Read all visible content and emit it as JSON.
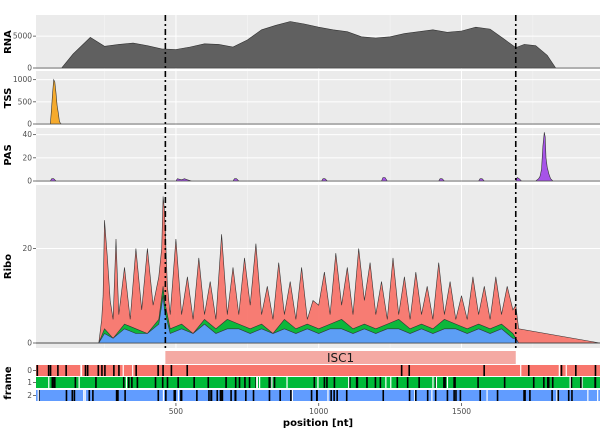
{
  "chart_data": {
    "type": "area",
    "xlabel": "position [nt]",
    "x_range": [
      10,
      1985
    ],
    "x_ticks": [
      500,
      1000,
      1500
    ],
    "orf_markers": [
      463,
      1690
    ],
    "gene": {
      "name": "ISC1",
      "start": 463,
      "end": 1690,
      "color": "#f4a9a3"
    },
    "panels": [
      {
        "id": "rna",
        "ylabel": "RNA",
        "y_ticks": [
          0,
          5000
        ],
        "ylim": [
          0,
          8000
        ],
        "series": [
          {
            "name": "rna",
            "color": "#606060",
            "x": [
              10,
              100,
              140,
              200,
              250,
              300,
              350,
              400,
              450,
              500,
              550,
              600,
              650,
              700,
              750,
              800,
              850,
              900,
              950,
              1000,
              1050,
              1100,
              1150,
              1200,
              1250,
              1300,
              1350,
              1400,
              1450,
              1500,
              1550,
              1600,
              1650,
              1690,
              1720,
              1760,
              1800,
              1830,
              1985
            ],
            "y": [
              0,
              0,
              2200,
              4800,
              3400,
              3700,
              3900,
              3500,
              3000,
              2900,
              3300,
              3800,
              3700,
              3300,
              4400,
              6000,
              6700,
              7300,
              6900,
              6400,
              6000,
              5700,
              4900,
              4700,
              4900,
              5400,
              5700,
              6000,
              5600,
              5800,
              6400,
              6100,
              4500,
              3200,
              3700,
              3500,
              2000,
              0,
              0
            ]
          }
        ]
      },
      {
        "id": "tss",
        "ylabel": "TSS",
        "y_ticks": [
          0,
          500,
          1000
        ],
        "ylim": [
          0,
          1150
        ],
        "series": [
          {
            "name": "tss",
            "color": "#f5a623",
            "x": [
              10,
              60,
              64,
              68,
              72,
              76,
              80,
              84,
              88,
              92,
              96,
              100,
              1985
            ],
            "y": [
              0,
              0,
              300,
              700,
              1000,
              950,
              700,
              420,
              250,
              60,
              10,
              0,
              0
            ]
          }
        ]
      },
      {
        "id": "pas",
        "ylabel": "PAS",
        "y_ticks": [
          0,
          20,
          40
        ],
        "ylim": [
          0,
          44
        ],
        "series": [
          {
            "name": "pas",
            "color": "#a24be8",
            "x": [
              10,
              60,
              65,
              72,
              80,
              500,
              505,
              520,
              530,
              540,
              555,
              700,
              705,
              712,
              720,
              1010,
              1015,
              1022,
              1030,
              1220,
              1225,
              1232,
              1240,
              1420,
              1425,
              1432,
              1440,
              1560,
              1565,
              1572,
              1580,
              1690,
              1695,
              1702,
              1710,
              1760,
              1770,
              1775,
              1780,
              1785,
              1790,
              1793,
              1796,
              1800,
              1806,
              1812,
              1820,
              1985
            ],
            "y": [
              0,
              0,
              2,
              2,
              0,
              0,
              2,
              1,
              2,
              1,
              0,
              0,
              2,
              2,
              0,
              0,
              2,
              2,
              0,
              0,
              3,
              3,
              0,
              0,
              2,
              2,
              0,
              0,
              2,
              2,
              0,
              0,
              3,
              2,
              0,
              0,
              2,
              4,
              10,
              30,
              42,
              38,
              20,
              12,
              6,
              2,
              0,
              0
            ]
          }
        ]
      },
      {
        "id": "ribo",
        "ylabel": "Ribo",
        "y_ticks": [
          0,
          20
        ],
        "ylim": [
          0,
          33
        ],
        "series": [
          {
            "name": "frame 0",
            "color": "#f8766d",
            "x": [
              10,
              230,
              240,
              245,
              250,
              260,
              270,
              280,
              290,
              300,
              320,
              340,
              360,
              380,
              400,
              420,
              440,
              450,
              455,
              460,
              470,
              480,
              500,
              520,
              540,
              560,
              580,
              600,
              620,
              640,
              660,
              680,
              700,
              720,
              740,
              760,
              780,
              800,
              820,
              840,
              860,
              880,
              900,
              920,
              940,
              960,
              980,
              1000,
              1020,
              1040,
              1060,
              1080,
              1100,
              1120,
              1140,
              1160,
              1180,
              1200,
              1220,
              1240,
              1260,
              1280,
              1300,
              1320,
              1340,
              1360,
              1380,
              1400,
              1420,
              1440,
              1460,
              1480,
              1500,
              1520,
              1540,
              1560,
              1580,
              1600,
              1620,
              1640,
              1660,
              1680,
              1690,
              1700,
              1985
            ],
            "y": [
              0,
              0,
              5,
              10,
              26,
              18,
              9,
              5,
              22,
              6,
              16,
              5,
              20,
              7,
              20,
              8,
              14,
              20,
              31,
              28,
              12,
              6,
              22,
              6,
              14,
              5,
              18,
              6,
              13,
              5,
              23,
              6,
              16,
              6,
              18,
              8,
              21,
              6,
              12,
              5,
              17,
              6,
              13,
              5,
              16,
              5,
              9,
              8,
              15,
              6,
              19,
              8,
              16,
              6,
              20,
              9,
              17,
              6,
              13,
              5,
              18,
              6,
              14,
              5,
              15,
              6,
              12,
              5,
              17,
              6,
              13,
              5,
              10,
              5,
              14,
              6,
              12,
              5,
              14,
              6,
              12,
              7,
              8,
              3,
              0
            ]
          },
          {
            "name": "frame 1",
            "color": "#00ba38",
            "x": [
              10,
              230,
              250,
              280,
              320,
              360,
              400,
              440,
              455,
              460,
              480,
              520,
              560,
              600,
              640,
              680,
              720,
              760,
              800,
              840,
              880,
              920,
              960,
              1000,
              1040,
              1080,
              1120,
              1160,
              1200,
              1240,
              1280,
              1320,
              1360,
              1400,
              1440,
              1480,
              1520,
              1560,
              1600,
              1640,
              1680,
              1690,
              1700,
              1985
            ],
            "y": [
              0,
              0,
              3,
              1,
              4,
              3,
              2,
              5,
              12,
              9,
              3,
              4,
              2,
              5,
              3,
              5,
              4,
              3,
              4,
              2,
              5,
              3,
              4,
              3,
              4,
              5,
              3,
              4,
              3,
              4,
              5,
              3,
              4,
              3,
              5,
              4,
              3,
              4,
              3,
              4,
              2,
              1,
              0,
              0
            ]
          },
          {
            "name": "frame 2",
            "color": "#619cff",
            "x": [
              10,
              230,
              250,
              280,
              320,
              360,
              400,
              440,
              455,
              460,
              480,
              520,
              560,
              600,
              640,
              680,
              720,
              760,
              800,
              840,
              880,
              920,
              960,
              1000,
              1040,
              1080,
              1120,
              1160,
              1200,
              1240,
              1280,
              1320,
              1360,
              1400,
              1440,
              1480,
              1520,
              1560,
              1600,
              1640,
              1680,
              1690,
              1700,
              1985
            ],
            "y": [
              0,
              0,
              2,
              1,
              3,
              2,
              2,
              4,
              10,
              7,
              2,
              3,
              2,
              4,
              2,
              3,
              3,
              2,
              3,
              2,
              3,
              2,
              3,
              2,
              3,
              3,
              2,
              3,
              2,
              3,
              3,
              2,
              3,
              2,
              3,
              3,
              2,
              3,
              2,
              3,
              1,
              1,
              0,
              0
            ]
          }
        ]
      }
    ],
    "frame_track": {
      "ylabel": "frame",
      "rows": [
        {
          "label": "0",
          "color": "#f8766d"
        },
        {
          "label": "1",
          "color": "#00ba38"
        },
        {
          "label": "2",
          "color": "#619cff"
        }
      ]
    }
  }
}
